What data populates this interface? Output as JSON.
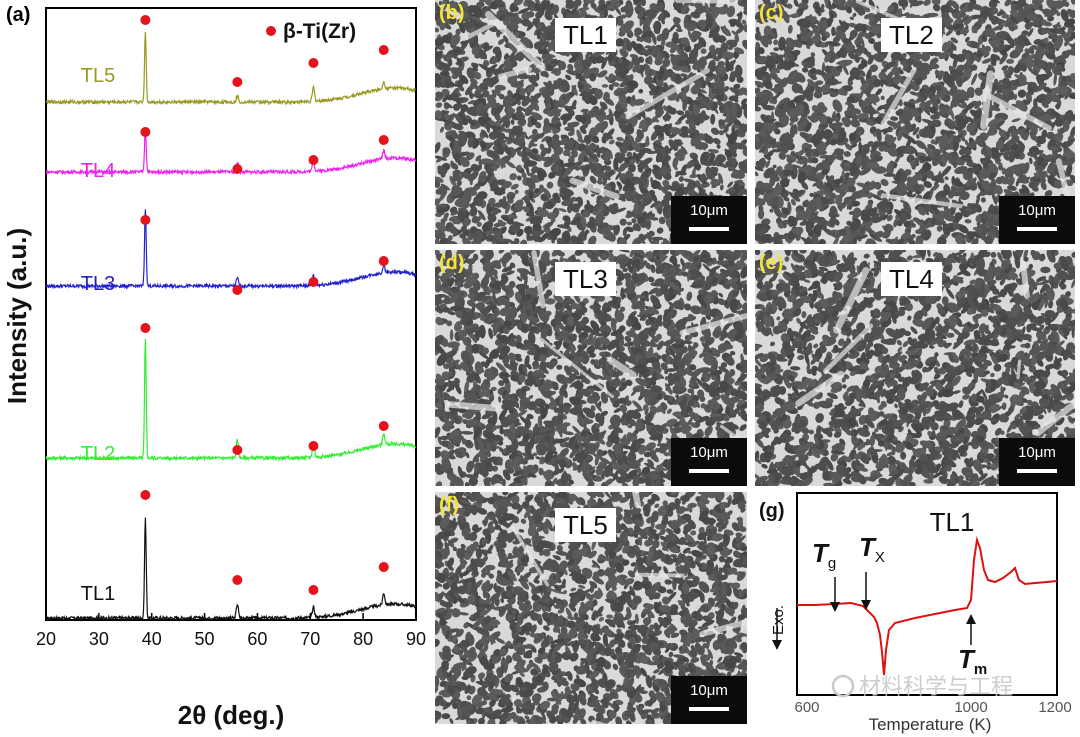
{
  "panel_a": {
    "label": "(a)",
    "legend_text": "β-Ti(Zr)",
    "ylabel": "Intensity (a.u.)",
    "xlabel": "2θ  (deg.)",
    "colors": {
      "marker": "#e3141c"
    }
  },
  "chart_data": {
    "type": "line",
    "title": "",
    "xlabel": "2θ (deg.)",
    "ylabel": "Intensity (a.u.)",
    "xlim": [
      20,
      90
    ],
    "xticks": [
      20,
      30,
      40,
      50,
      60,
      70,
      80,
      90
    ],
    "peak_positions": [
      38.8,
      56.2,
      70.6,
      83.9
    ],
    "legend": "β-Ti(Zr)",
    "series": [
      {
        "name": "TL1",
        "color": "#111111",
        "offset": 0,
        "peak_heights": [
          100,
          14,
          10,
          12
        ]
      },
      {
        "name": "TL2",
        "color": "#33ee33",
        "offset": 1,
        "peak_heights": [
          118,
          18,
          15,
          12
        ]
      },
      {
        "name": "TL3",
        "color": "#2222cc",
        "offset": 2,
        "peak_heights": [
          78,
          8,
          10,
          8
        ]
      },
      {
        "name": "TL4",
        "color": "#ee22ee",
        "offset": 3,
        "peak_heights": [
          45,
          10,
          11,
          8
        ]
      },
      {
        "name": "TL5",
        "color": "#999922",
        "offset": 4,
        "peak_heights": [
          70,
          6,
          14,
          7
        ]
      }
    ]
  },
  "sem_panels": [
    {
      "label": "(b)",
      "title": "TL1",
      "scale": "10μm"
    },
    {
      "label": "(c)",
      "title": "TL2",
      "scale": "10μm"
    },
    {
      "label": "(d)",
      "title": "TL3",
      "scale": "10μm"
    },
    {
      "label": "(e)",
      "title": "TL4",
      "scale": "10μm"
    },
    {
      "label": "(f)",
      "title": "TL5",
      "scale": "10μm"
    }
  ],
  "panel_g": {
    "label": "(g)",
    "title": "TL1",
    "ylabel": "Exo.",
    "xlabel": "Temperature (K)",
    "ticks": [
      "600",
      "1000",
      "1200"
    ],
    "tg": "T",
    "tg_sub": "g",
    "tx": "T",
    "tx_sub": "X",
    "tm": "T",
    "tm_sub": "m",
    "curve_color": "#dd1111"
  },
  "watermark": "材料科学与工程"
}
